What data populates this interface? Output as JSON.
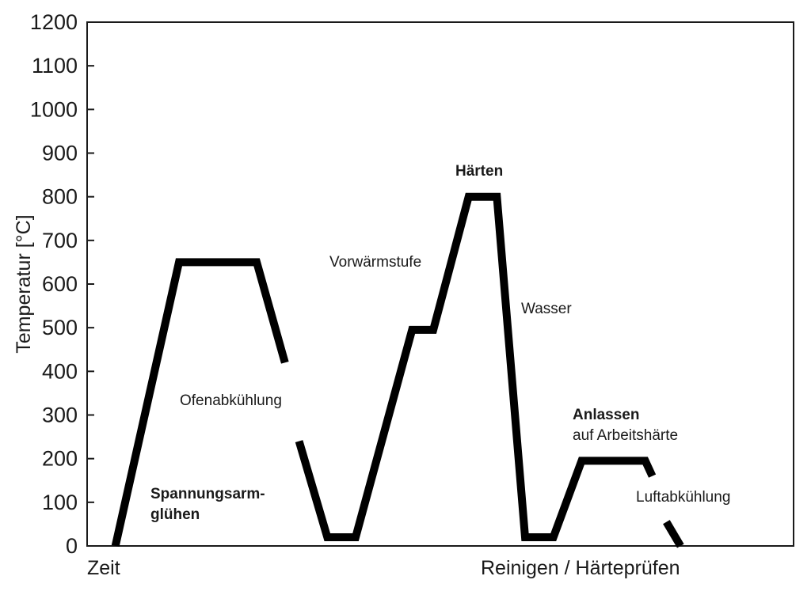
{
  "chart_data": {
    "type": "line",
    "title": "",
    "ylabel": "Temperatur [°C]",
    "xlabel_left": "Zeit",
    "xlabel_right": "Reinigen / Härteprüfen",
    "ylim": [
      0,
      1200
    ],
    "yticks": [
      "0",
      "100",
      "200",
      "300",
      "400",
      "500",
      "600",
      "700",
      "800",
      "900",
      "1000",
      "1100",
      "1200"
    ],
    "grid": false,
    "segments": [
      {
        "points": [
          [
            0.04,
            0
          ],
          [
            0.13,
            650
          ],
          [
            0.24,
            650
          ],
          [
            0.28,
            420
          ]
        ]
      },
      {
        "points": [
          [
            0.3,
            240
          ],
          [
            0.34,
            20
          ],
          [
            0.38,
            20
          ],
          [
            0.46,
            495
          ],
          [
            0.49,
            495
          ],
          [
            0.54,
            800
          ],
          [
            0.58,
            800
          ],
          [
            0.62,
            20
          ],
          [
            0.66,
            20
          ],
          [
            0.7,
            195
          ],
          [
            0.79,
            195
          ],
          [
            0.8,
            160
          ]
        ]
      },
      {
        "points": [
          [
            0.82,
            55
          ],
          [
            0.84,
            0
          ]
        ]
      }
    ],
    "annotations": [
      {
        "lines": [
          "Spannungsarm-",
          "glühen"
        ],
        "bold": true
      },
      {
        "lines": [
          "Ofenabkühlung"
        ],
        "bold": false
      },
      {
        "lines": [
          "Vorwärmstufe"
        ],
        "bold": false
      },
      {
        "lines": [
          "Härten"
        ],
        "bold": true
      },
      {
        "lines": [
          "Wasser"
        ],
        "bold": false
      },
      {
        "lines": [
          "Anlassen"
        ],
        "bold": true
      },
      {
        "lines": [
          "auf Arbeitshärte"
        ],
        "bold": false
      },
      {
        "lines": [
          "Luftabkühlung"
        ],
        "bold": false
      }
    ]
  }
}
